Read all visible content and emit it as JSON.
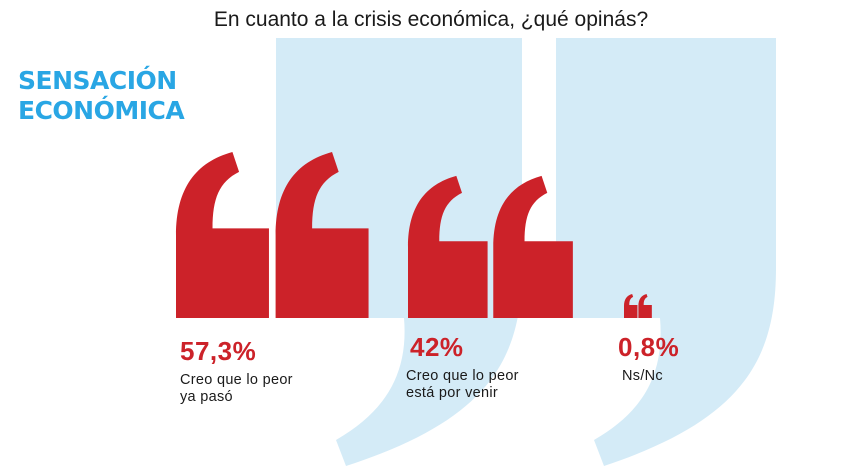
{
  "title": "En cuanto a la crisis económica, ¿qué opinás?",
  "brand": {
    "line1": "SENSACIÓN",
    "line2": "ECONÓMICA"
  },
  "colors": {
    "accent": "#cc2229",
    "brand": "#29a6e4",
    "watermark": "#d4ebf7"
  },
  "chart_data": {
    "type": "bar",
    "title": "En cuanto a la crisis económica, ¿qué opinás?",
    "unit": "%",
    "categories": [
      "Creo que lo peor ya pasó",
      "Creo que lo peor está por venir",
      "Ns/Nc"
    ],
    "values": [
      57.3,
      42,
      0.8
    ],
    "data_labels": [
      "57,3%",
      "42%",
      "0,8%"
    ],
    "category_lines": [
      [
        "Creo que lo peor",
        "ya pasó"
      ],
      [
        "Creo que lo peor",
        "está por venir"
      ],
      [
        "Ns/Nc"
      ]
    ]
  }
}
